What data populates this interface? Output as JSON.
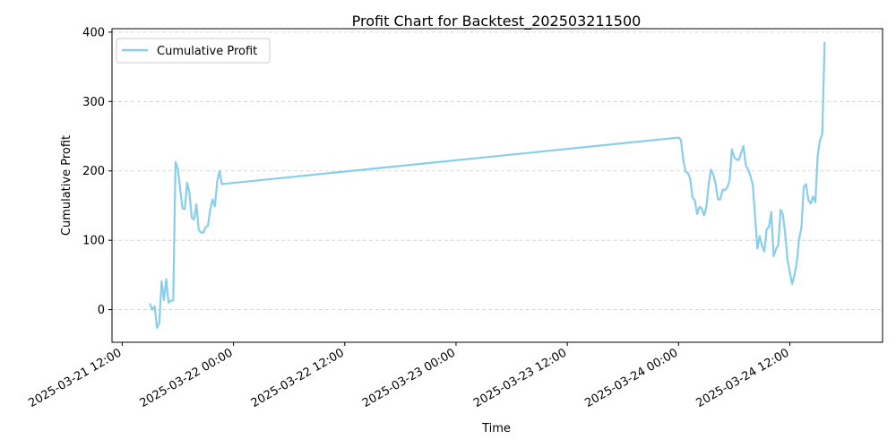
{
  "chart_data": {
    "type": "line",
    "title": "Profit Chart for Backtest_202503211500",
    "xlabel": "Time",
    "ylabel": "Cumulative Profit",
    "x_range": [
      "2025-03-21 10:54",
      "2025-03-24 22:00"
    ],
    "ylim": [
      -47,
      405
    ],
    "grid": "y-dashed",
    "legend_position": "top-left",
    "colors": {
      "line": "#87ceeb",
      "grid": "#cccccc",
      "axis": "#000000"
    },
    "yticks": [
      0,
      100,
      200,
      300,
      400
    ],
    "xticks": [
      {
        "t": "2025-03-21 12:00",
        "label": "2025-03-21 12:00"
      },
      {
        "t": "2025-03-22 00:00",
        "label": "2025-03-22 00:00"
      },
      {
        "t": "2025-03-22 12:00",
        "label": "2025-03-22 12:00"
      },
      {
        "t": "2025-03-23 00:00",
        "label": "2025-03-23 00:00"
      },
      {
        "t": "2025-03-23 12:00",
        "label": "2025-03-23 12:00"
      },
      {
        "t": "2025-03-24 00:00",
        "label": "2025-03-24 00:00"
      },
      {
        "t": "2025-03-24 12:00",
        "label": "2025-03-24 12:00"
      }
    ],
    "series": [
      {
        "name": "Cumulative Profit",
        "points": [
          [
            "2025-03-21 15:00",
            8
          ],
          [
            "2025-03-21 15:15",
            0
          ],
          [
            "2025-03-21 15:30",
            5
          ],
          [
            "2025-03-21 15:45",
            -26
          ],
          [
            "2025-03-21 16:00",
            -19
          ],
          [
            "2025-03-21 16:15",
            41
          ],
          [
            "2025-03-21 16:30",
            14
          ],
          [
            "2025-03-21 16:45",
            44
          ],
          [
            "2025-03-21 17:00",
            10
          ],
          [
            "2025-03-21 17:15",
            13
          ],
          [
            "2025-03-21 17:30",
            13
          ],
          [
            "2025-03-21 17:45",
            213
          ],
          [
            "2025-03-21 18:00",
            203
          ],
          [
            "2025-03-21 18:15",
            174
          ],
          [
            "2025-03-21 18:30",
            146
          ],
          [
            "2025-03-21 18:45",
            145
          ],
          [
            "2025-03-21 19:00",
            183
          ],
          [
            "2025-03-21 19:15",
            168
          ],
          [
            "2025-03-21 19:30",
            133
          ],
          [
            "2025-03-21 19:45",
            130
          ],
          [
            "2025-03-21 20:00",
            152
          ],
          [
            "2025-03-21 20:15",
            115
          ],
          [
            "2025-03-21 20:30",
            111
          ],
          [
            "2025-03-21 20:45",
            111
          ],
          [
            "2025-03-21 21:00",
            119
          ],
          [
            "2025-03-21 21:15",
            121
          ],
          [
            "2025-03-21 21:30",
            145
          ],
          [
            "2025-03-21 21:45",
            159
          ],
          [
            "2025-03-21 22:00",
            149
          ],
          [
            "2025-03-21 22:15",
            185
          ],
          [
            "2025-03-21 22:30",
            200
          ],
          [
            "2025-03-21 22:45",
            181
          ],
          [
            "2025-03-24 00:00",
            248
          ],
          [
            "2025-03-24 00:15",
            245
          ],
          [
            "2025-03-24 00:30",
            217
          ],
          [
            "2025-03-24 00:45",
            199
          ],
          [
            "2025-03-24 01:00",
            197
          ],
          [
            "2025-03-24 01:15",
            189
          ],
          [
            "2025-03-24 01:30",
            162
          ],
          [
            "2025-03-24 01:45",
            158
          ],
          [
            "2025-03-24 02:00",
            138
          ],
          [
            "2025-03-24 02:15",
            148
          ],
          [
            "2025-03-24 02:30",
            146
          ],
          [
            "2025-03-24 02:45",
            136
          ],
          [
            "2025-03-24 03:00",
            148
          ],
          [
            "2025-03-24 03:15",
            181
          ],
          [
            "2025-03-24 03:30",
            202
          ],
          [
            "2025-03-24 03:45",
            195
          ],
          [
            "2025-03-24 04:00",
            181
          ],
          [
            "2025-03-24 04:15",
            159
          ],
          [
            "2025-03-24 04:30",
            159
          ],
          [
            "2025-03-24 04:45",
            173
          ],
          [
            "2025-03-24 05:00",
            172
          ],
          [
            "2025-03-24 05:15",
            176
          ],
          [
            "2025-03-24 05:30",
            186
          ],
          [
            "2025-03-24 05:45",
            231
          ],
          [
            "2025-03-24 06:00",
            220
          ],
          [
            "2025-03-24 06:15",
            216
          ],
          [
            "2025-03-24 06:30",
            216
          ],
          [
            "2025-03-24 06:45",
            226
          ],
          [
            "2025-03-24 07:00",
            236
          ],
          [
            "2025-03-24 07:15",
            208
          ],
          [
            "2025-03-24 07:30",
            202
          ],
          [
            "2025-03-24 07:45",
            193
          ],
          [
            "2025-03-24 08:00",
            180
          ],
          [
            "2025-03-24 08:15",
            135
          ],
          [
            "2025-03-24 08:30",
            88
          ],
          [
            "2025-03-24 08:45",
            106
          ],
          [
            "2025-03-24 09:00",
            92
          ],
          [
            "2025-03-24 09:15",
            84
          ],
          [
            "2025-03-24 09:30",
            116
          ],
          [
            "2025-03-24 09:45",
            119
          ],
          [
            "2025-03-24 10:00",
            141
          ],
          [
            "2025-03-24 10:15",
            77
          ],
          [
            "2025-03-24 10:30",
            87
          ],
          [
            "2025-03-24 10:45",
            93
          ],
          [
            "2025-03-24 11:00",
            144
          ],
          [
            "2025-03-24 11:15",
            137
          ],
          [
            "2025-03-24 11:30",
            109
          ],
          [
            "2025-03-24 11:45",
            72
          ],
          [
            "2025-03-24 12:00",
            54
          ],
          [
            "2025-03-24 12:15",
            37
          ],
          [
            "2025-03-24 12:30",
            50
          ],
          [
            "2025-03-24 12:45",
            68
          ],
          [
            "2025-03-24 13:00",
            102
          ],
          [
            "2025-03-24 13:15",
            118
          ],
          [
            "2025-03-24 13:30",
            177
          ],
          [
            "2025-03-24 13:45",
            181
          ],
          [
            "2025-03-24 14:00",
            158
          ],
          [
            "2025-03-24 14:15",
            153
          ],
          [
            "2025-03-24 14:30",
            163
          ],
          [
            "2025-03-24 14:45",
            155
          ],
          [
            "2025-03-24 15:00",
            221
          ],
          [
            "2025-03-24 15:15",
            244
          ],
          [
            "2025-03-24 15:30",
            253
          ],
          [
            "2025-03-24 15:45",
            385
          ]
        ]
      }
    ]
  }
}
